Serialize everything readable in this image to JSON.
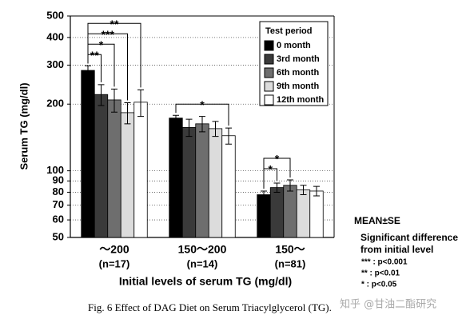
{
  "chart_data": {
    "type": "bar",
    "y_label": "Serum TG (mg/dl)",
    "x_label": "Initial levels of serum TG (mg/dl)",
    "log_scale": true,
    "grid": true,
    "ylim": [
      50,
      500
    ],
    "yticks": [
      50,
      60,
      70,
      80,
      90,
      100,
      200,
      300,
      400,
      500
    ],
    "categories": [
      "～200",
      "150～200",
      "150～"
    ],
    "category_notes": [
      "(n=17)",
      "(n=14)",
      "(n=81)"
    ],
    "legend_title": "Test period",
    "legend_position": "upper right",
    "series": [
      {
        "name": "0 month",
        "color": "#000000",
        "values": [
          284,
          173,
          78
        ],
        "errors": [
          14,
          5,
          3
        ]
      },
      {
        "name": "3rd month",
        "color": "#3a3a3a",
        "values": [
          221,
          157,
          84
        ],
        "errors": [
          24,
          14,
          4
        ]
      },
      {
        "name": "6th month",
        "color": "#6e6e6e",
        "values": [
          209,
          163,
          86
        ],
        "errors": [
          25,
          13,
          5
        ]
      },
      {
        "name": "9th month",
        "color": "#dcdcdc",
        "values": [
          183,
          155,
          82
        ],
        "errors": [
          20,
          12,
          4
        ]
      },
      {
        "name": "12th month",
        "color": "#ffffff",
        "values": [
          204,
          144,
          81
        ],
        "errors": [
          28,
          12,
          4
        ]
      }
    ],
    "annotations": [
      {
        "label": "**",
        "category": "～200",
        "between": [
          "0 month",
          "3rd month"
        ]
      },
      {
        "label": "*",
        "category": "～200",
        "between": [
          "0 month",
          "6th month"
        ]
      },
      {
        "label": "***",
        "category": "～200",
        "between": [
          "0 month",
          "9th month"
        ]
      },
      {
        "label": "**",
        "category": "～200",
        "between": [
          "0 month",
          "12th month"
        ]
      },
      {
        "label": "*",
        "category": "150～200",
        "between": [
          "0 month",
          "12th month"
        ]
      },
      {
        "label": "*",
        "category": "150～",
        "between": [
          "0 month",
          "3rd month"
        ]
      },
      {
        "label": "*",
        "category": "150～",
        "between": [
          "0 month",
          "6th month"
        ]
      }
    ],
    "side_notes": {
      "mean": "MEAN±SE",
      "title_1": "Significant difference",
      "title_2": "from initial level",
      "p_levels": [
        "*** : p<0.001",
        "** : p<0.01",
        "* : p<0.05"
      ]
    },
    "caption": "Fig. 6  Effect of DAG Diet on Serum Triacylglycerol (TG).",
    "watermark": "知乎 @甘油二酯研究"
  }
}
